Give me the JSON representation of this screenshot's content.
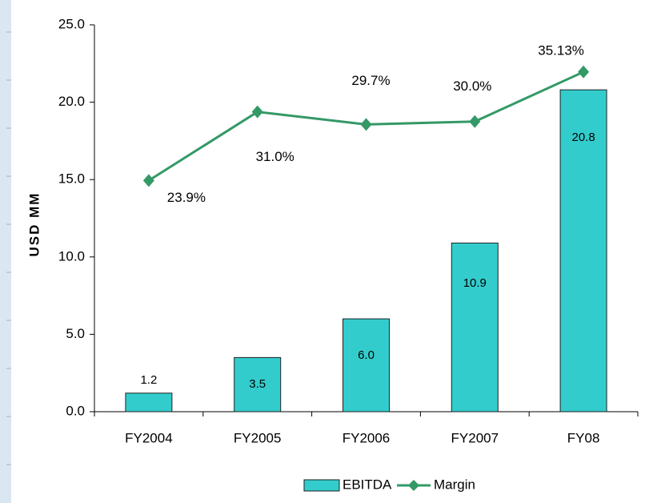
{
  "chart_data": {
    "type": "bar",
    "categories": [
      "FY2004",
      "FY2005",
      "FY2006",
      "FY2007",
      "FY08"
    ],
    "y_axis_label": "USD MM",
    "ylim": [
      0,
      25
    ],
    "yticks": [
      {
        "value": 0,
        "label": "0.0"
      },
      {
        "value": 5,
        "label": "5.0"
      },
      {
        "value": 10,
        "label": "10.0"
      },
      {
        "value": 15,
        "label": "15.0"
      },
      {
        "value": 20,
        "label": "20.0"
      },
      {
        "value": 25,
        "label": "25.0"
      }
    ],
    "y2lim": [
      0,
      40
    ],
    "legend": "bottom",
    "series": [
      {
        "name": "EBITDA",
        "type": "bar",
        "color": "#33cccc",
        "values": [
          1.2,
          3.5,
          6.0,
          10.9,
          20.8
        ],
        "value_labels": [
          "1.2",
          "3.5",
          "6.0",
          "10.9",
          "20.8"
        ]
      },
      {
        "name": "Margin",
        "type": "line",
        "axis": "y2",
        "color": "#339966",
        "values": [
          23.9,
          31.0,
          29.7,
          30.0,
          35.13
        ],
        "value_labels": [
          "23.9%",
          "31.0%",
          "29.7%",
          "30.0%",
          "35.13%"
        ]
      }
    ]
  }
}
